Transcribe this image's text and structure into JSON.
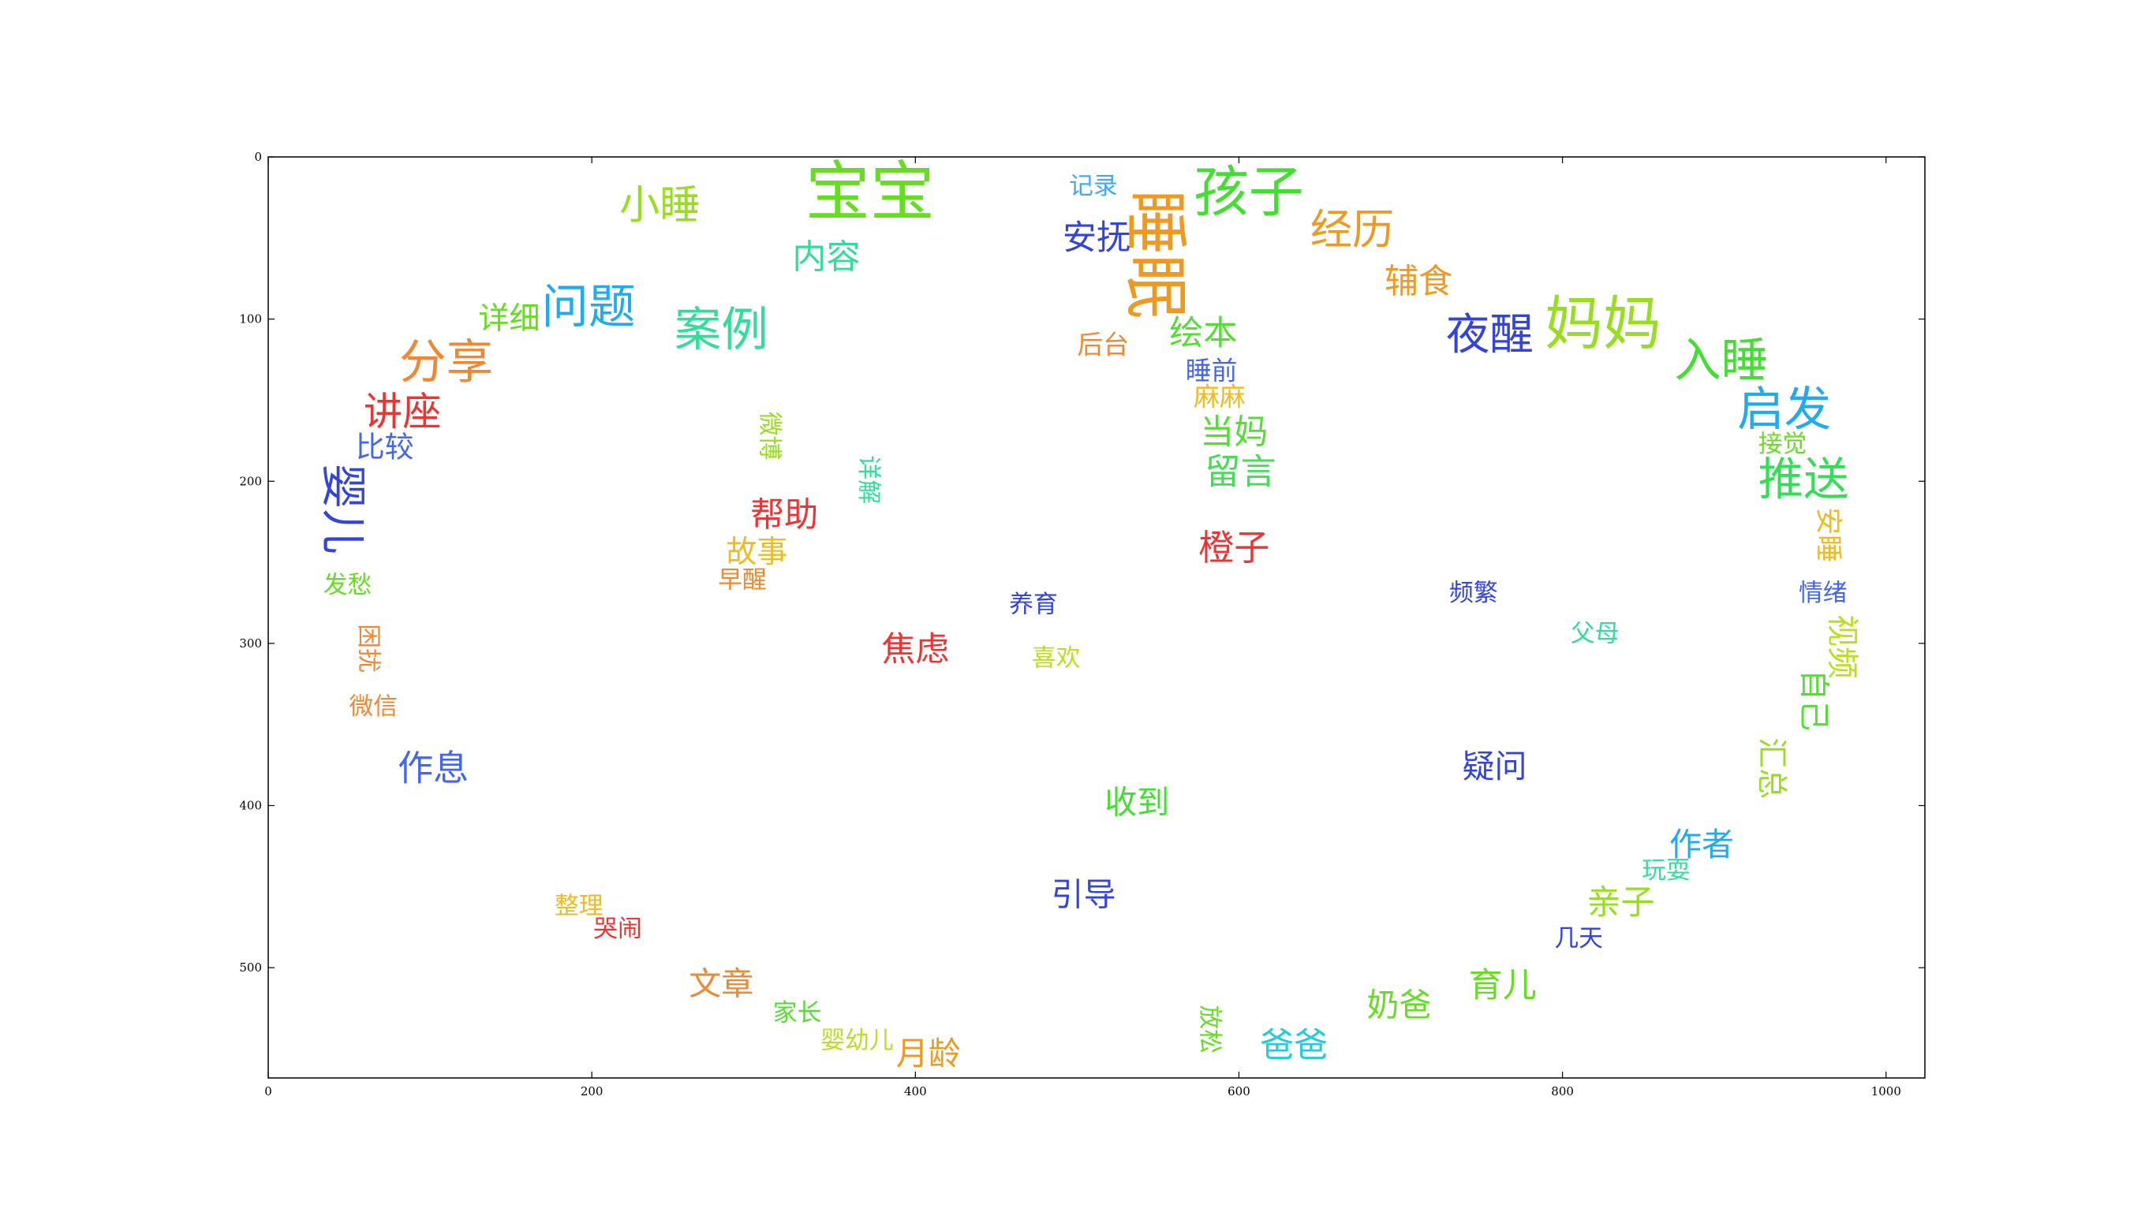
{
  "chart_data": {
    "type": "word_cloud",
    "xlim": [
      0,
      1024
    ],
    "ylim": [
      568,
      0
    ],
    "x_ticks": [
      0,
      200,
      400,
      600,
      800,
      1000
    ],
    "y_ticks": [
      0,
      100,
      200,
      300,
      400,
      500
    ],
    "x_tick_labels": [
      "0",
      "200",
      "400",
      "600",
      "800",
      "1000"
    ],
    "y_tick_labels": [
      "0",
      "100",
      "200",
      "300",
      "400",
      "500"
    ],
    "grid": false,
    "words": [
      {
        "text": "宝宝",
        "x": 372,
        "y": 22,
        "size": 40,
        "color": "#66dd22",
        "rotate": 0
      },
      {
        "text": "睡眠",
        "x": 548,
        "y": 60,
        "size": 40,
        "color": "#ee9922",
        "rotate": 90
      },
      {
        "text": "孩子",
        "x": 606,
        "y": 22,
        "size": 34,
        "color": "#44dd33",
        "rotate": 0
      },
      {
        "text": "小睡",
        "x": 242,
        "y": 30,
        "size": 25,
        "color": "#99dd22",
        "rotate": 0
      },
      {
        "text": "记录",
        "x": 510,
        "y": 18,
        "size": 15,
        "color": "#44aaee",
        "rotate": 0
      },
      {
        "text": "安抚",
        "x": 512,
        "y": 50,
        "size": 21,
        "color": "#3344dd",
        "rotate": 0
      },
      {
        "text": "内容",
        "x": 345,
        "y": 62,
        "size": 21,
        "color": "#33dd99",
        "rotate": 0
      },
      {
        "text": "经历",
        "x": 670,
        "y": 45,
        "size": 26,
        "color": "#ee9922",
        "rotate": 0
      },
      {
        "text": "辅食",
        "x": 711,
        "y": 77,
        "size": 21,
        "color": "#ee9922",
        "rotate": 0
      },
      {
        "text": "详细",
        "x": 149,
        "y": 100,
        "size": 19,
        "color": "#66dd22",
        "rotate": 0
      },
      {
        "text": "问题",
        "x": 198,
        "y": 93,
        "size": 29,
        "color": "#22aaee",
        "rotate": 0
      },
      {
        "text": "案例",
        "x": 280,
        "y": 107,
        "size": 29,
        "color": "#33dd99",
        "rotate": 0
      },
      {
        "text": "后台",
        "x": 516,
        "y": 116,
        "size": 16,
        "color": "#ee8833",
        "rotate": 0
      },
      {
        "text": "绘本",
        "x": 578,
        "y": 109,
        "size": 21,
        "color": "#55dd33",
        "rotate": 0
      },
      {
        "text": "夜醒",
        "x": 755,
        "y": 110,
        "size": 27,
        "color": "#3344dd",
        "rotate": 0
      },
      {
        "text": "妈妈",
        "x": 825,
        "y": 103,
        "size": 36,
        "color": "#99dd22",
        "rotate": 0
      },
      {
        "text": "入睡",
        "x": 898,
        "y": 126,
        "size": 29,
        "color": "#44dd33",
        "rotate": 0
      },
      {
        "text": "分享",
        "x": 110,
        "y": 127,
        "size": 29,
        "color": "#ee8833",
        "rotate": 0
      },
      {
        "text": "睡前",
        "x": 583,
        "y": 132,
        "size": 16,
        "color": "#4466ee",
        "rotate": 0
      },
      {
        "text": "麻麻",
        "x": 588,
        "y": 148,
        "size": 16,
        "color": "#eebb22",
        "rotate": 0
      },
      {
        "text": "讲座",
        "x": 83,
        "y": 157,
        "size": 24,
        "color": "#ee3333",
        "rotate": 0
      },
      {
        "text": "启发",
        "x": 937,
        "y": 156,
        "size": 29,
        "color": "#22aaee",
        "rotate": 0
      },
      {
        "text": "比较",
        "x": 72,
        "y": 179,
        "size": 18,
        "color": "#4466ee",
        "rotate": 0
      },
      {
        "text": "接觉",
        "x": 936,
        "y": 177,
        "size": 15,
        "color": "#66dd22",
        "rotate": 0
      },
      {
        "text": "当妈",
        "x": 597,
        "y": 170,
        "size": 21,
        "color": "#55dd33",
        "rotate": 0
      },
      {
        "text": "微博",
        "x": 310,
        "y": 172,
        "size": 15,
        "color": "#99dd22",
        "rotate": 90
      },
      {
        "text": "留言",
        "x": 601,
        "y": 194,
        "size": 22,
        "color": "#44dd55",
        "rotate": 0
      },
      {
        "text": "详解",
        "x": 371,
        "y": 199,
        "size": 15,
        "color": "#33dd99",
        "rotate": 90
      },
      {
        "text": "推送",
        "x": 949,
        "y": 199,
        "size": 28,
        "color": "#33dd55",
        "rotate": 0
      },
      {
        "text": "婴儿",
        "x": 46,
        "y": 217,
        "size": 28,
        "color": "#3344dd",
        "rotate": 90
      },
      {
        "text": "帮助",
        "x": 319,
        "y": 221,
        "size": 21,
        "color": "#ee3333",
        "rotate": 0
      },
      {
        "text": "安睡",
        "x": 964,
        "y": 233,
        "size": 17,
        "color": "#eebb22",
        "rotate": 90
      },
      {
        "text": "故事",
        "x": 302,
        "y": 244,
        "size": 19,
        "color": "#eebb22",
        "rotate": 0
      },
      {
        "text": "橙子",
        "x": 597,
        "y": 241,
        "size": 22,
        "color": "#ee3333",
        "rotate": 0
      },
      {
        "text": "早醒",
        "x": 293,
        "y": 261,
        "size": 15,
        "color": "#ee8833",
        "rotate": 0
      },
      {
        "text": "发愁",
        "x": 49,
        "y": 264,
        "size": 15,
        "color": "#66dd22",
        "rotate": 0
      },
      {
        "text": "养育",
        "x": 473,
        "y": 276,
        "size": 15,
        "color": "#3344dd",
        "rotate": 0
      },
      {
        "text": "频繁",
        "x": 745,
        "y": 269,
        "size": 15,
        "color": "#3344dd",
        "rotate": 0
      },
      {
        "text": "情绪",
        "x": 961,
        "y": 269,
        "size": 15,
        "color": "#4466ee",
        "rotate": 0
      },
      {
        "text": "父母",
        "x": 820,
        "y": 294,
        "size": 15,
        "color": "#33dd99",
        "rotate": 0
      },
      {
        "text": "焦虑",
        "x": 400,
        "y": 304,
        "size": 21,
        "color": "#ee3333",
        "rotate": 0
      },
      {
        "text": "喜欢",
        "x": 487,
        "y": 309,
        "size": 15,
        "color": "#bbdd22",
        "rotate": 0
      },
      {
        "text": "困扰",
        "x": 62,
        "y": 303,
        "size": 15,
        "color": "#ee8833",
        "rotate": 90
      },
      {
        "text": "视频",
        "x": 973,
        "y": 302,
        "size": 20,
        "color": "#bbdd22",
        "rotate": 90
      },
      {
        "text": "微信",
        "x": 65,
        "y": 339,
        "size": 15,
        "color": "#ee8833",
        "rotate": 0
      },
      {
        "text": "自己",
        "x": 955,
        "y": 335,
        "size": 19,
        "color": "#55dd33",
        "rotate": 90
      },
      {
        "text": "作息",
        "x": 102,
        "y": 377,
        "size": 22,
        "color": "#4466ee",
        "rotate": 0
      },
      {
        "text": "疑问",
        "x": 758,
        "y": 376,
        "size": 20,
        "color": "#3344dd",
        "rotate": 0
      },
      {
        "text": "汇总",
        "x": 929,
        "y": 377,
        "size": 19,
        "color": "#99dd22",
        "rotate": 90
      },
      {
        "text": "收到",
        "x": 537,
        "y": 398,
        "size": 20,
        "color": "#44dd33",
        "rotate": 0
      },
      {
        "text": "作者",
        "x": 886,
        "y": 424,
        "size": 20,
        "color": "#22aaee",
        "rotate": 0
      },
      {
        "text": "玩耍",
        "x": 864,
        "y": 440,
        "size": 15,
        "color": "#33dd99",
        "rotate": 0
      },
      {
        "text": "引导",
        "x": 504,
        "y": 455,
        "size": 20,
        "color": "#3344dd",
        "rotate": 0
      },
      {
        "text": "整理",
        "x": 192,
        "y": 462,
        "size": 15,
        "color": "#eebb22",
        "rotate": 0
      },
      {
        "text": "亲子",
        "x": 836,
        "y": 460,
        "size": 21,
        "color": "#99dd22",
        "rotate": 0
      },
      {
        "text": "哭闹",
        "x": 216,
        "y": 476,
        "size": 15,
        "color": "#ee3333",
        "rotate": 0
      },
      {
        "text": "几天",
        "x": 810,
        "y": 482,
        "size": 15,
        "color": "#3344dd",
        "rotate": 0
      },
      {
        "text": "文章",
        "x": 280,
        "y": 510,
        "size": 20,
        "color": "#ee8833",
        "rotate": 0
      },
      {
        "text": "育儿",
        "x": 763,
        "y": 511,
        "size": 21,
        "color": "#66dd22",
        "rotate": 0
      },
      {
        "text": "奶爸",
        "x": 699,
        "y": 523,
        "size": 20,
        "color": "#66dd22",
        "rotate": 0
      },
      {
        "text": "家长",
        "x": 327,
        "y": 528,
        "size": 15,
        "color": "#55dd33",
        "rotate": 0
      },
      {
        "text": "放松",
        "x": 582,
        "y": 538,
        "size": 15,
        "color": "#66dd22",
        "rotate": 90
      },
      {
        "text": "爸爸",
        "x": 634,
        "y": 548,
        "size": 21,
        "color": "#22ccdd",
        "rotate": 0
      },
      {
        "text": "婴幼儿",
        "x": 364,
        "y": 545,
        "size": 15,
        "color": "#bbdd22",
        "rotate": 0
      },
      {
        "text": "月龄",
        "x": 408,
        "y": 553,
        "size": 20,
        "color": "#ee9922",
        "rotate": 0
      }
    ]
  }
}
